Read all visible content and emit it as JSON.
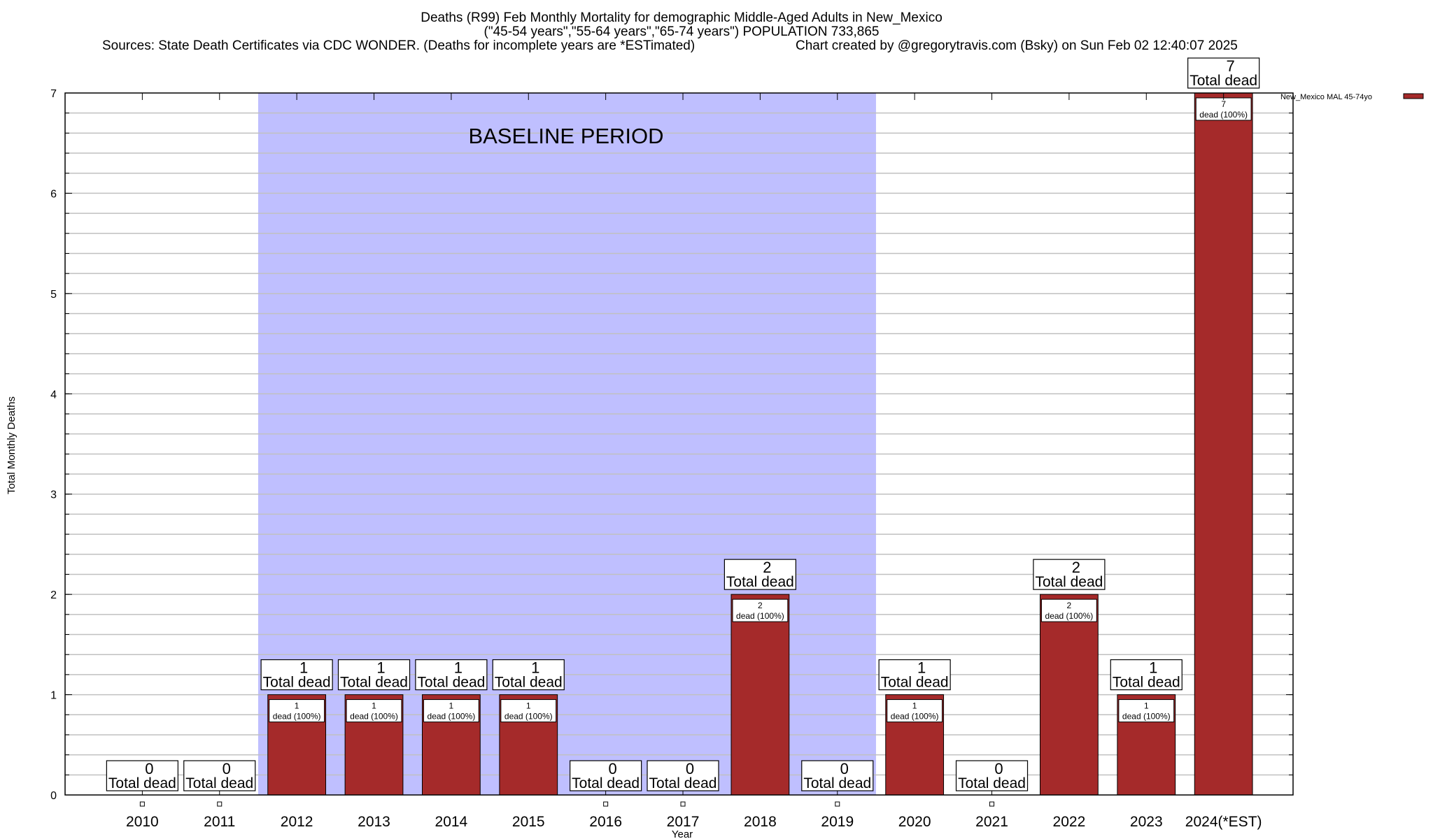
{
  "chart_data": {
    "type": "bar",
    "title": [
      "Deaths (R99) Feb Monthly Mortality for demographic Middle-Aged Adults in New_Mexico",
      "(\"45-54 years\",\"55-64 years\",\"65-74 years\") POPULATION 733,865"
    ],
    "sources": "Sources: State Death Certificates via CDC WONDER. (Deaths for incomplete years are *ESTimated)",
    "credit": "Chart created by @gregorytravis.com (Bsky) on Sun Feb 02 12:40:07 2025",
    "xlabel": "Year",
    "ylabel": "Total Monthly Deaths",
    "ylim": [
      0,
      7
    ],
    "yticks": [
      0,
      1,
      2,
      3,
      4,
      5,
      6,
      7
    ],
    "minor_grid_step": 0.2,
    "grid": true,
    "legend": {
      "label": "New_Mexico MAL 45-74yo",
      "placement": "top-right outside"
    },
    "categories": [
      "2010",
      "2011",
      "2012",
      "2013",
      "2014",
      "2015",
      "2016",
      "2017",
      "2018",
      "2019",
      "2020",
      "2021",
      "2022",
      "2023",
      "2024(*EST)"
    ],
    "series": [
      {
        "name": "New_Mexico MAL 45-74yo",
        "values": [
          0,
          0,
          1,
          1,
          1,
          1,
          0,
          0,
          2,
          0,
          1,
          0,
          2,
          1,
          7
        ]
      }
    ],
    "total_label": "Total dead",
    "bar_label_suffix": "dead (100%)",
    "baseline": {
      "label": "BASELINE PERIOD",
      "from_category": "2012",
      "to_category": "2019"
    },
    "colors": {
      "bar": "#a52a2a",
      "baseline": "#bfbfff",
      "grid": "#c0c0c0"
    }
  }
}
